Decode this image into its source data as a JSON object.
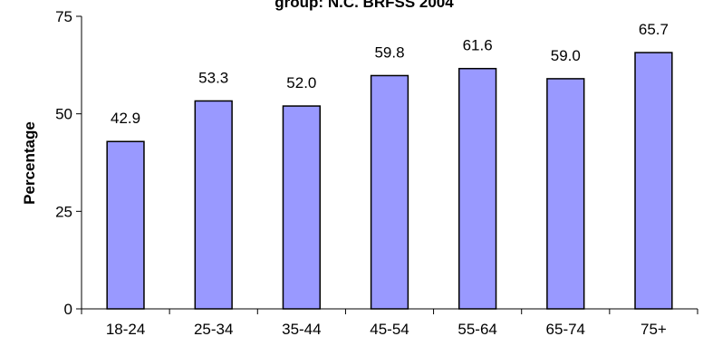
{
  "chart_data": {
    "type": "bar",
    "title": "group: N.C. BRFSS 2004",
    "xlabel": "",
    "ylabel": "Percentage",
    "categories": [
      "18-24",
      "25-34",
      "35-44",
      "45-54",
      "55-64",
      "65-74",
      "75+"
    ],
    "values": [
      42.9,
      53.3,
      52.0,
      59.8,
      61.6,
      59.0,
      65.7
    ],
    "value_labels": [
      "42.9",
      "53.3",
      "52.0",
      "59.8",
      "61.6",
      "59.0",
      "65.7"
    ],
    "ylim": [
      0,
      75
    ],
    "yticks": [
      0,
      25,
      50,
      75
    ],
    "bar_color": "#9999ff",
    "bar_edge_color": "#000000",
    "grid": false,
    "legend": "none"
  }
}
